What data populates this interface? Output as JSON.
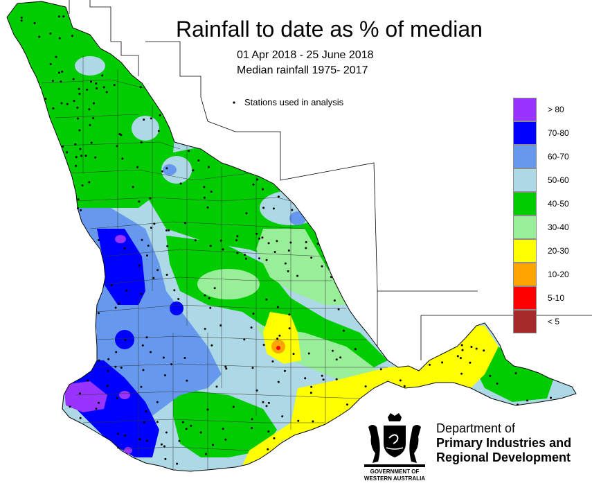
{
  "title": "Rainfall to date as % of median",
  "period": "01 Apr 2018 - 25 June 2018",
  "baseline": "Median rainfall 1975- 2017",
  "stations_label": "Stations used in analysis",
  "legend": [
    {
      "label": "> 80",
      "color": "#9933ff"
    },
    {
      "label": "70-80",
      "color": "#0000ff"
    },
    {
      "label": "60-70",
      "color": "#6699ee"
    },
    {
      "label": "50-60",
      "color": "#add8e6"
    },
    {
      "label": "40-50",
      "color": "#00cc00"
    },
    {
      "label": "30-40",
      "color": "#99ee99"
    },
    {
      "label": "20-30",
      "color": "#ffff00"
    },
    {
      "label": "10-20",
      "color": "#ffa500"
    },
    {
      "label": "5-10",
      "color": "#ff0000"
    },
    {
      "label": "< 5",
      "color": "#a52a2a"
    }
  ],
  "department": {
    "line1": "Department of",
    "line2": "Primary Industries and",
    "line3": "Regional Development"
  },
  "government": {
    "line1": "GOVERNMENT OF",
    "line2": "WESTERN AUSTRALIA"
  }
}
